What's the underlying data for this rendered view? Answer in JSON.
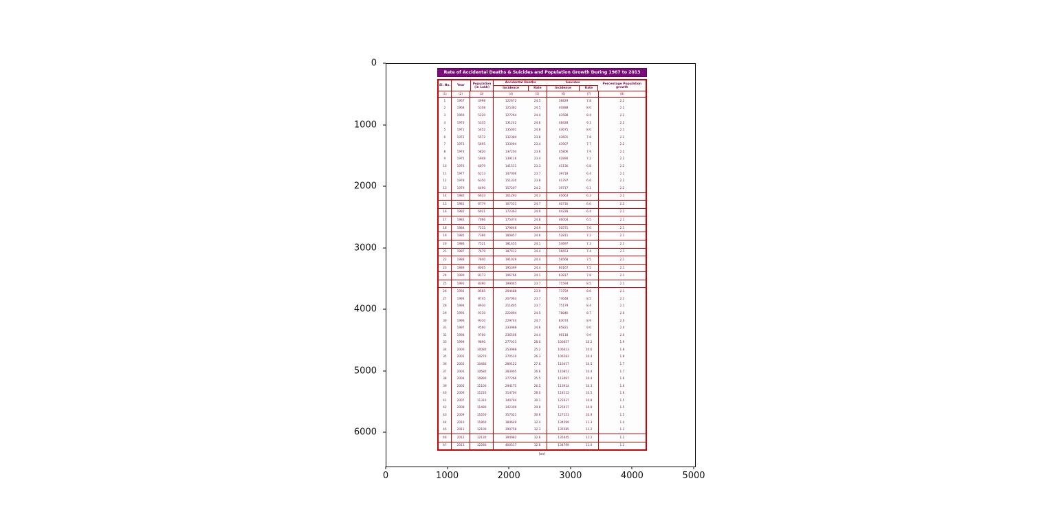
{
  "figure": {
    "x_ticks": [
      "0",
      "1000",
      "2000",
      "3000",
      "4000",
      "5000"
    ],
    "y_ticks": [
      "0",
      "1000",
      "2000",
      "3000",
      "4000",
      "5000",
      "6000"
    ]
  },
  "colors": {
    "title_bg": "#7b0a7b",
    "table_border": "#d40000",
    "table_text": "#7a1040"
  },
  "document": {
    "title": "Rate of Accidental Deaths & Suicides and Population Growth During 1967 to 2013",
    "footer": "(xv)",
    "header": {
      "sl_no": "Sl. No.",
      "year": "Year",
      "population": "Population (in Lakh)",
      "accidental_deaths": "Accidental Deaths",
      "suicides": "Suicides",
      "incidence_ad": "Incidence",
      "rate_ad": "Rate",
      "incidence_su": "Incidence",
      "rate_su": "Rate",
      "growth": "Percentage Population growth"
    },
    "column_numbers": [
      "(1)",
      "(2)",
      "(3)",
      "(4)",
      "(5)",
      "(6)",
      "(7)",
      "(8)"
    ]
  },
  "chart_data": {
    "type": "table",
    "title": "Rate of Accidental Deaths & Suicides and Population Growth During 1967 to 2013",
    "columns": [
      "Sl. No.",
      "Year",
      "Population (in Lakh)",
      "Accidental Deaths - Incidence",
      "Accidental Deaths - Rate",
      "Suicides - Incidence",
      "Suicides - Rate",
      "Percentage Population growth"
    ],
    "axes": {
      "x_ticks": [
        0,
        1000,
        2000,
        3000,
        4000,
        5000
      ],
      "y_ticks": [
        0,
        1000,
        2000,
        3000,
        4000,
        5000,
        6000
      ],
      "grid": false,
      "note": "matplotlib-style image axes, y increasing downward"
    },
    "rows": [
      [
        "1",
        "1967",
        "4998",
        "122672",
        "24.5",
        "38829",
        "7.8",
        "2.2"
      ],
      [
        "2",
        "1968",
        "5108",
        "125382",
        "24.5",
        "40888",
        "8.0",
        "2.2"
      ],
      [
        "3",
        "1969",
        "5220",
        "127264",
        "24.4",
        "43588",
        "8.4",
        "2.2"
      ],
      [
        "4",
        "1970",
        "5335",
        "131242",
        "24.6",
        "48428",
        "9.1",
        "2.2"
      ],
      [
        "5",
        "1971",
        "5452",
        "135001",
        "24.8",
        "43675",
        "8.0",
        "2.1"
      ],
      [
        "6",
        "1972",
        "5572",
        "132384",
        "23.8",
        "43601",
        "7.8",
        "2.2"
      ],
      [
        "7",
        "1973",
        "5695",
        "133094",
        "23.4",
        "43907",
        "7.7",
        "2.2"
      ],
      [
        "8",
        "1974",
        "5820",
        "137204",
        "23.6",
        "45806",
        "7.9",
        "2.2"
      ],
      [
        "9",
        "1975",
        "5948",
        "139116",
        "23.4",
        "42890",
        "7.2",
        "2.2"
      ],
      [
        "10",
        "1976",
        "6079",
        "141511",
        "23.3",
        "41136",
        "6.8",
        "2.2"
      ],
      [
        "11",
        "1977",
        "6213",
        "147006",
        "23.7",
        "39718",
        "6.4",
        "2.2"
      ],
      [
        "12",
        "1978",
        "6350",
        "151330",
        "23.8",
        "41797",
        "6.6",
        "2.2"
      ],
      [
        "13",
        "1979",
        "6490",
        "157207",
        "24.2",
        "39717",
        "6.1",
        "2.2"
      ],
      [
        "14",
        "1980",
        "6633",
        "161293",
        "24.3",
        "41663",
        "6.3",
        "2.2"
      ],
      [
        "15",
        "1981",
        "6779",
        "167551",
        "24.7",
        "40716",
        "6.0",
        "2.2"
      ],
      [
        "16",
        "1982",
        "6921",
        "172363",
        "24.9",
        "44228",
        "6.4",
        "2.1"
      ],
      [
        "17",
        "1983",
        "7066",
        "175374",
        "24.8",
        "46004",
        "6.5",
        "2.1"
      ],
      [
        "18",
        "1984",
        "7215",
        "179646",
        "24.9",
        "50571",
        "7.0",
        "2.1"
      ],
      [
        "19",
        "1985",
        "7366",
        "180857",
        "24.6",
        "52811",
        "7.2",
        "2.1"
      ],
      [
        "20",
        "1986",
        "7521",
        "181455",
        "24.1",
        "54697",
        "7.3",
        "2.1"
      ],
      [
        "21",
        "1987",
        "7679",
        "187412",
        "24.4",
        "56653",
        "7.4",
        "2.1"
      ],
      [
        "22",
        "1988",
        "7840",
        "191029",
        "24.4",
        "58568",
        "7.5",
        "2.1"
      ],
      [
        "23",
        "1989",
        "8005",
        "195399",
        "24.4",
        "60167",
        "7.5",
        "2.1"
      ],
      [
        "24",
        "1990",
        "8173",
        "196766",
        "24.1",
        "63817",
        "7.8",
        "2.1"
      ],
      [
        "25",
        "1991",
        "8390",
        "199045",
        "23.7",
        "71594",
        "8.5",
        "2.1"
      ],
      [
        "26",
        "1992",
        "8565",
        "204488",
        "23.9",
        "73759",
        "8.6",
        "2.1"
      ],
      [
        "27",
        "1993",
        "8745",
        "207063",
        "23.7",
        "74648",
        "8.5",
        "2.1"
      ],
      [
        "28",
        "1994",
        "8930",
        "211805",
        "23.7",
        "75179",
        "8.4",
        "2.1"
      ],
      [
        "29",
        "1995",
        "9110",
        "222894",
        "24.5",
        "78846",
        "8.7",
        "2.0"
      ],
      [
        "30",
        "1996",
        "9310",
        "229744",
        "24.7",
        "83074",
        "8.9",
        "2.0"
      ],
      [
        "31",
        "1997",
        "9500",
        "233988",
        "24.6",
        "85821",
        "9.0",
        "2.0"
      ],
      [
        "32",
        "1998",
        "9700",
        "236506",
        "24.4",
        "96118",
        "9.9",
        "2.0"
      ],
      [
        "33",
        "1999",
        "9890",
        "277013",
        "28.0",
        "100657",
        "10.2",
        "1.9"
      ],
      [
        "34",
        "2000",
        "10080",
        "253988",
        "25.2",
        "106623",
        "10.6",
        "1.8"
      ],
      [
        "35",
        "2001",
        "10270",
        "270510",
        "26.3",
        "106583",
        "10.4",
        "1.8"
      ],
      [
        "36",
        "2002",
        "10480",
        "289122",
        "27.6",
        "110417",
        "10.5",
        "1.7"
      ],
      [
        "37",
        "2003",
        "10680",
        "283905",
        "26.6",
        "110851",
        "10.4",
        "1.7"
      ],
      [
        "38",
        "2004",
        "10890",
        "277266",
        "25.5",
        "113697",
        "10.4",
        "1.6"
      ],
      [
        "39",
        "2005",
        "11100",
        "294175",
        "26.5",
        "113914",
        "10.3",
        "1.6"
      ],
      [
        "40",
        "2006",
        "11220",
        "314704",
        "28.0",
        "118112",
        "10.5",
        "1.6"
      ],
      [
        "41",
        "2007",
        "11310",
        "340794",
        "30.1",
        "122637",
        "10.8",
        "1.5"
      ],
      [
        "42",
        "2008",
        "11480",
        "342309",
        "29.8",
        "125017",
        "10.9",
        "1.5"
      ],
      [
        "43",
        "2009",
        "11650",
        "357021",
        "30.6",
        "127151",
        "10.9",
        "1.5"
      ],
      [
        "44",
        "2010",
        "11860",
        "384649",
        "32.4",
        "134599",
        "11.3",
        "1.4"
      ],
      [
        "45",
        "2011",
        "12100",
        "390758",
        "32.3",
        "135585",
        "11.2",
        "1.3"
      ],
      [
        "46",
        "2012",
        "12130",
        "394982",
        "32.6",
        "135445",
        "11.2",
        "1.2"
      ],
      [
        "47",
        "2013",
        "12280",
        "400517",
        "32.6",
        "134799",
        "11.0",
        "1.2"
      ]
    ]
  }
}
